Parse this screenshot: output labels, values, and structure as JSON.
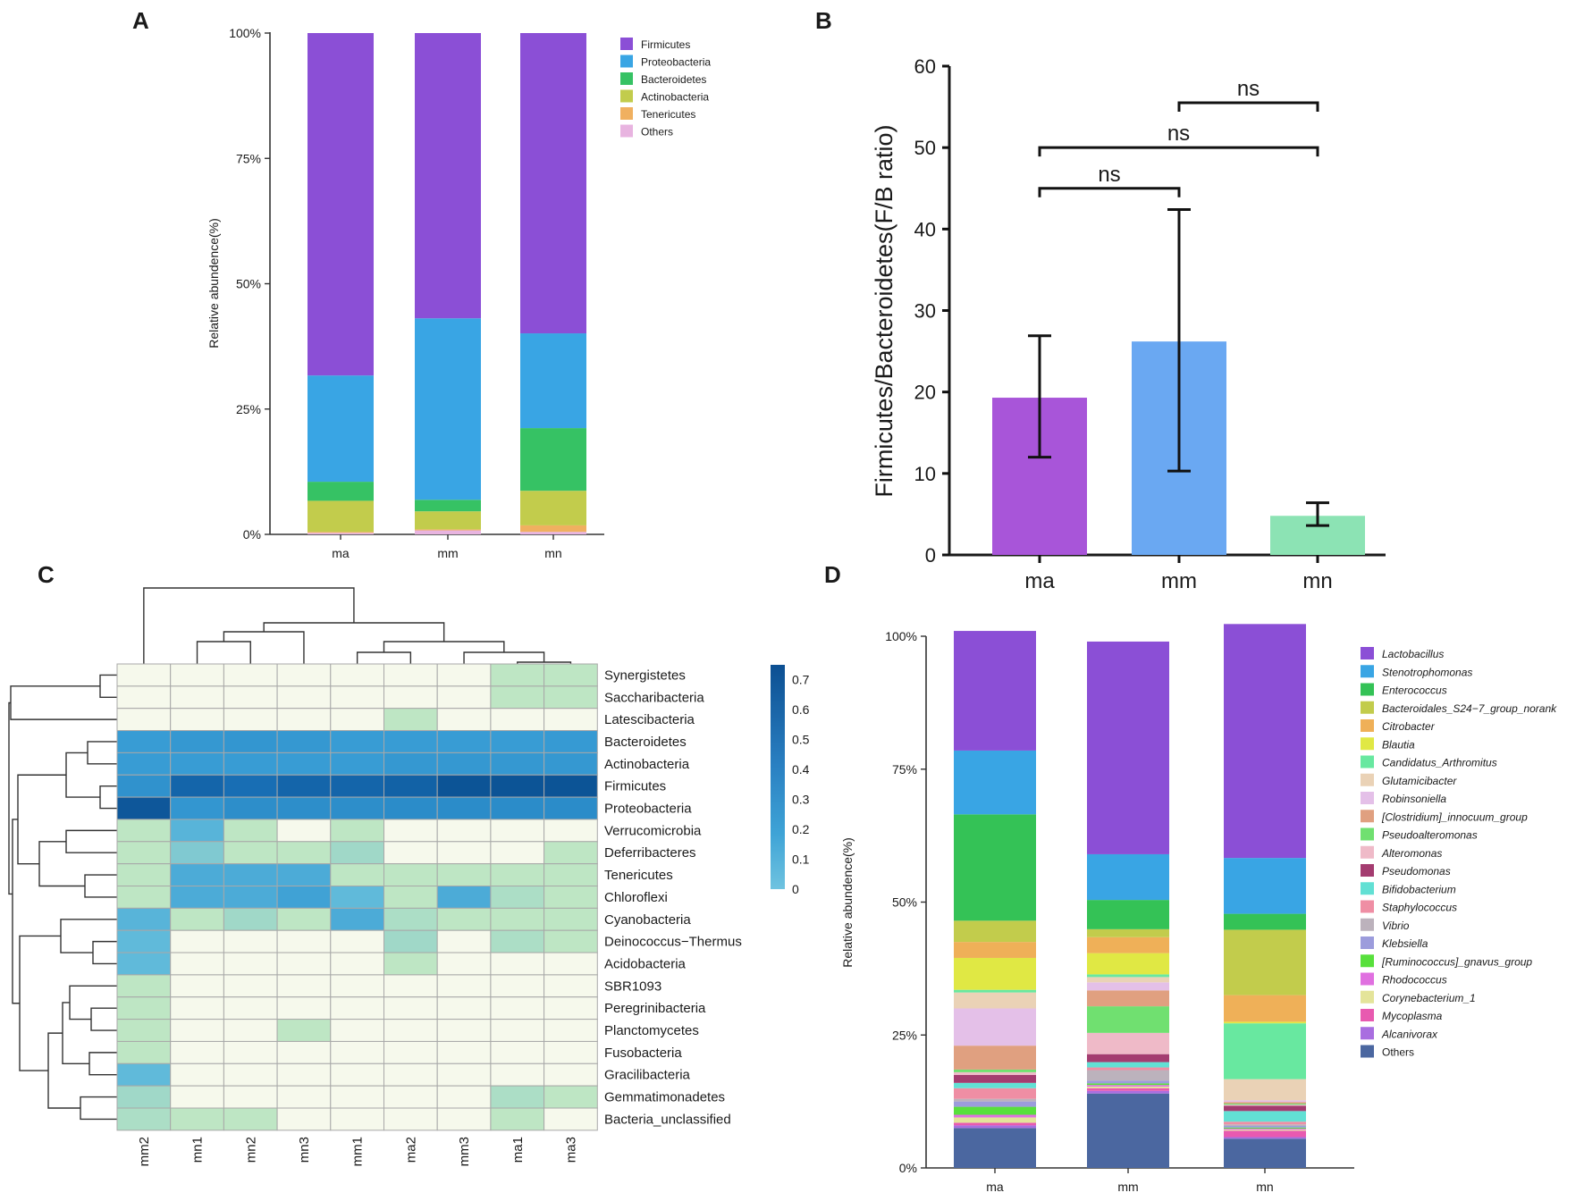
{
  "panels": [
    {
      "letter": "A"
    },
    {
      "letter": "B"
    },
    {
      "letter": "C"
    },
    {
      "letter": "D"
    }
  ],
  "chart_data": [
    {
      "panel": "A",
      "type": "bar",
      "stacked": true,
      "ylabel": "Relative abundence(%)",
      "yticks": [
        "0%",
        "25%",
        "50%",
        "75%",
        "100%"
      ],
      "ylim": [
        0,
        100
      ],
      "categories": [
        "ma",
        "mm",
        "mn"
      ],
      "legend_position": "top-right",
      "series": [
        {
          "name": "Others",
          "color": "#e8b4e0",
          "values": [
            0.3,
            0.8,
            0.5
          ]
        },
        {
          "name": "Tenericutes",
          "color": "#f0b060",
          "values": [
            0.2,
            0.2,
            1.3
          ]
        },
        {
          "name": "Actinobacteria",
          "color": "#c2cc4c",
          "values": [
            6.2,
            3.6,
            6.9
          ]
        },
        {
          "name": "Bacteroidetes",
          "color": "#36c264",
          "values": [
            3.8,
            2.3,
            12.5
          ]
        },
        {
          "name": "Proteobacteria",
          "color": "#39a5e4",
          "values": [
            21.2,
            36.2,
            18.9
          ]
        },
        {
          "name": "Firmicutes",
          "color": "#8b4fd6",
          "values": [
            68.3,
            56.9,
            59.9
          ]
        }
      ]
    },
    {
      "panel": "B",
      "type": "bar",
      "ylabel": "Firmicutes/Bacteroidetes(F/B ratio)",
      "ylim": [
        0,
        60
      ],
      "yticks": [
        "0",
        "10",
        "20",
        "30",
        "40",
        "50",
        "60"
      ],
      "categories": [
        "ma",
        "mm",
        "mn"
      ],
      "values": [
        19.3,
        26.2,
        4.8
      ],
      "error_low": [
        12.0,
        10.3,
        3.6
      ],
      "error_high": [
        26.9,
        42.4,
        6.4
      ],
      "colors": [
        "#a855d9",
        "#6aa8f2",
        "#8ce3b4"
      ],
      "significance": [
        {
          "from": "ma",
          "to": "mm",
          "y": 45,
          "label": "ns"
        },
        {
          "from": "ma",
          "to": "mn",
          "y": 50,
          "label": "ns"
        },
        {
          "from": "mm",
          "to": "mn",
          "y": 55.5,
          "label": "ns"
        }
      ]
    },
    {
      "panel": "C",
      "type": "heatmap",
      "columns": [
        "mm2",
        "mn1",
        "mn2",
        "mn3",
        "mm1",
        "ma2",
        "mm3",
        "ma1",
        "ma3"
      ],
      "rows": [
        "Synergistetes",
        "Saccharibacteria",
        "Latescibacteria",
        "Bacteroidetes",
        "Actinobacteria",
        "Firmicutes",
        "Proteobacteria",
        "Verrucomicrobia",
        "Deferribacteres",
        "Tenericutes",
        "Chloroflexi",
        "Cyanobacteria",
        "Deinococcus−Thermus",
        "Acidobacteria",
        "SBR1093",
        "Peregrinibacteria",
        "Planctomycetes",
        "Fusobacteria",
        "Gracilibacteria",
        "Gemmatimonadetes",
        "Bacteria_unclassified"
      ],
      "values": [
        [
          0,
          0,
          0,
          0,
          0,
          0,
          0,
          0.05,
          0.05
        ],
        [
          0,
          0,
          0,
          0,
          0,
          0,
          0,
          0.05,
          0.05
        ],
        [
          0,
          0,
          0,
          0,
          0,
          0.05,
          0,
          0,
          0
        ],
        [
          0.3,
          0.32,
          0.33,
          0.32,
          0.3,
          0.3,
          0.3,
          0.3,
          0.31
        ],
        [
          0.3,
          0.3,
          0.3,
          0.3,
          0.3,
          0.32,
          0.32,
          0.32,
          0.32
        ],
        [
          0.35,
          0.6,
          0.55,
          0.6,
          0.6,
          0.62,
          0.7,
          0.7,
          0.7
        ],
        [
          0.68,
          0.33,
          0.37,
          0.37,
          0.37,
          0.38,
          0.38,
          0.38,
          0.38
        ],
        [
          0.05,
          0.22,
          0.05,
          0,
          0.05,
          0,
          0,
          0,
          0
        ],
        [
          0.05,
          0.15,
          0.05,
          0.05,
          0.1,
          0,
          0,
          0,
          0.05
        ],
        [
          0.05,
          0.25,
          0.25,
          0.25,
          0.05,
          0.05,
          0.05,
          0.05,
          0.05
        ],
        [
          0.05,
          0.25,
          0.25,
          0.28,
          0.2,
          0.05,
          0.25,
          0.08,
          0.05
        ],
        [
          0.22,
          0.05,
          0.1,
          0.05,
          0.25,
          0.08,
          0.05,
          0.05,
          0.05
        ],
        [
          0.2,
          0,
          0,
          0,
          0,
          0.1,
          0,
          0.08,
          0.05
        ],
        [
          0.2,
          0,
          0,
          0,
          0,
          0.05,
          0,
          0,
          0
        ],
        [
          0.05,
          0,
          0,
          0,
          0,
          0,
          0,
          0,
          0
        ],
        [
          0.05,
          0,
          0,
          0,
          0,
          0,
          0,
          0,
          0
        ],
        [
          0.05,
          0,
          0,
          0.05,
          0,
          0,
          0,
          0,
          0
        ],
        [
          0.05,
          0,
          0,
          0,
          0,
          0,
          0,
          0,
          0
        ],
        [
          0.2,
          0,
          0,
          0,
          0,
          0,
          0,
          0,
          0
        ],
        [
          0.1,
          0,
          0,
          0,
          0,
          0,
          0,
          0.08,
          0.05
        ],
        [
          0.08,
          0.05,
          0.05,
          0,
          0,
          0,
          0,
          0.05,
          0
        ]
      ],
      "colorbar_ticks": [
        "0",
        "0.1",
        "0.2",
        "0.3",
        "0.4",
        "0.5",
        "0.6",
        "0.7"
      ],
      "colorbar_range": [
        0,
        0.75
      ]
    },
    {
      "panel": "D",
      "type": "bar",
      "stacked": true,
      "ylabel": "Relative abundence(%)",
      "yticks": [
        "0%",
        "25%",
        "50%",
        "75%",
        "100%"
      ],
      "ylim": [
        0,
        100
      ],
      "categories": [
        "ma",
        "mm",
        "mn"
      ],
      "legend_position": "right",
      "series": [
        {
          "name": "Others",
          "color": "#4b67a0",
          "values": [
            7.5,
            14.0,
            5.5
          ]
        },
        {
          "name": "Alcanivorax",
          "color": "#a96ee0",
          "values": [
            0.5,
            0.5,
            0.3
          ]
        },
        {
          "name": "Mycoplasma",
          "color": "#e85ab0",
          "values": [
            0.5,
            0.5,
            1.2
          ]
        },
        {
          "name": "Corynebacterium_1",
          "color": "#e4e49a",
          "values": [
            1.0,
            0.3,
            0.2
          ]
        },
        {
          "name": "Rhodococcus",
          "color": "#e070e0",
          "values": [
            0.5,
            0.3,
            0.2
          ]
        },
        {
          "name": "[Ruminococcus]_gnavus_group",
          "color": "#58e03c",
          "values": [
            1.5,
            0.3,
            0.2
          ]
        },
        {
          "name": "Klebsiella",
          "color": "#9c9cdc",
          "values": [
            1.0,
            0.5,
            0.3
          ]
        },
        {
          "name": "Vibrio",
          "color": "#bcb2bc",
          "values": [
            0.5,
            2.0,
            0.3
          ]
        },
        {
          "name": "Staphylococcus",
          "color": "#ef8ea4",
          "values": [
            2.0,
            0.5,
            0.5
          ]
        },
        {
          "name": "Bifidobacterium",
          "color": "#62e0d4",
          "values": [
            1.0,
            1.0,
            2.0
          ]
        },
        {
          "name": "Pseudomonas",
          "color": "#a43c70",
          "values": [
            1.5,
            1.5,
            1.0
          ]
        },
        {
          "name": "Alteromonas",
          "color": "#efbac8",
          "values": [
            0.5,
            4.0,
            0.2
          ]
        },
        {
          "name": "Pseudoalteromonas",
          "color": "#70e070",
          "values": [
            0.5,
            5.0,
            0.2
          ]
        },
        {
          "name": "[Clostridium]_innocuum_group",
          "color": "#e0a080",
          "values": [
            4.5,
            3.0,
            0.3
          ]
        },
        {
          "name": "Robinsoniella",
          "color": "#e4c0e8",
          "values": [
            7.0,
            1.5,
            0.3
          ]
        },
        {
          "name": "Glutamicibacter",
          "color": "#ead2b6",
          "values": [
            3.0,
            1.0,
            4.0
          ]
        },
        {
          "name": "Candidatus_Arthromitus",
          "color": "#68e8a0",
          "values": [
            0.5,
            0.5,
            10.5
          ]
        },
        {
          "name": "Blautia",
          "color": "#e0e844",
          "values": [
            6.0,
            4.0,
            0.3
          ]
        },
        {
          "name": "Citrobacter",
          "color": "#efb058",
          "values": [
            3.0,
            3.0,
            5.0
          ]
        },
        {
          "name": "Bacteroidales_S24−7_group_norank",
          "color": "#c2cc4c",
          "values": [
            4.0,
            1.5,
            12.3
          ]
        },
        {
          "name": "Enterococcus",
          "color": "#34c256",
          "values": [
            20.0,
            5.5,
            3.0
          ]
        },
        {
          "name": "Stenotrophomonas",
          "color": "#39a5e4",
          "values": [
            12.0,
            8.6,
            10.5
          ]
        },
        {
          "name": "Lactobacillus",
          "color": "#8b4fd6",
          "values": [
            22.5,
            40.0,
            44.0
          ]
        }
      ]
    }
  ]
}
